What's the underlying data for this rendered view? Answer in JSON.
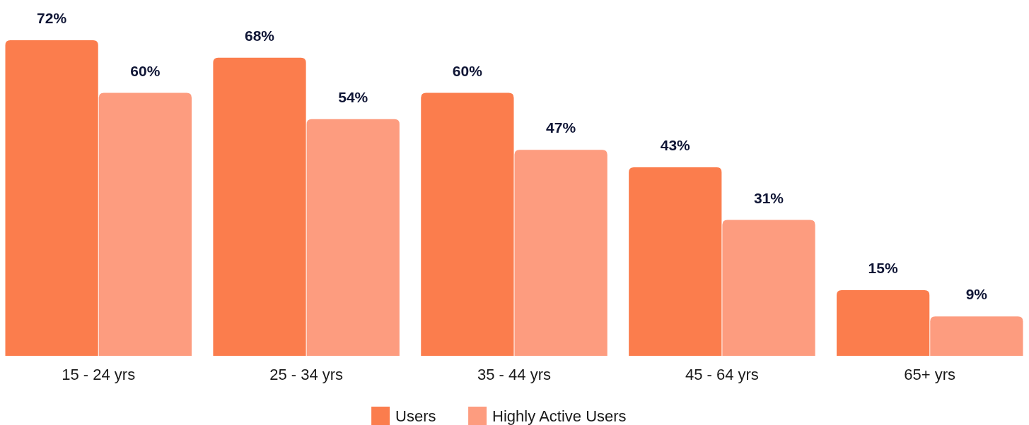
{
  "chart_data": {
    "type": "bar",
    "categories": [
      "15 - 24 yrs",
      "25 - 34 yrs",
      "35 - 44 yrs",
      "45 - 64 yrs",
      "65+ yrs"
    ],
    "series": [
      {
        "name": "Users",
        "color": "#fb7d4d",
        "values": [
          72,
          68,
          60,
          43,
          15
        ],
        "value_labels": [
          "72%",
          "68%",
          "60%",
          "43%",
          "15%"
        ]
      },
      {
        "name": "Highly Active Users",
        "color": "#fd9c7f",
        "values": [
          60,
          54,
          47,
          31,
          9
        ],
        "value_labels": [
          "60%",
          "54%",
          "47%",
          "31%",
          "9%"
        ]
      }
    ],
    "legend": "bottom"
  }
}
